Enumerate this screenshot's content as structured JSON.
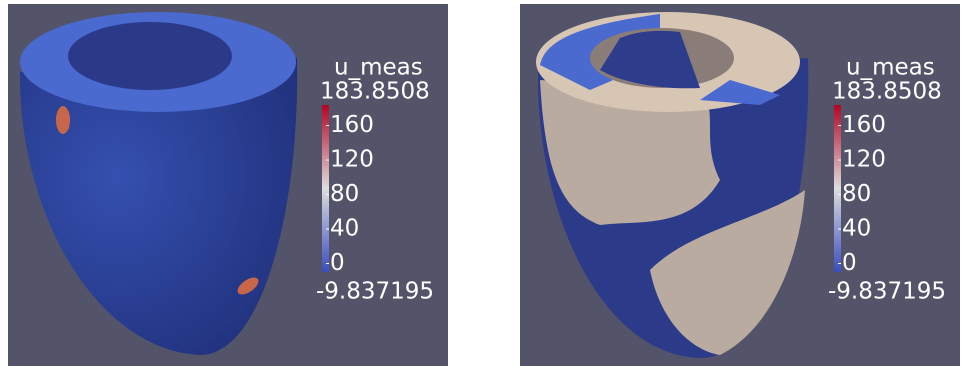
{
  "panels": [
    {
      "colorbar": {
        "title": "u_meas",
        "range": [
          -9.837195,
          183.8508
        ],
        "ticks": [
          0,
          40,
          80,
          120,
          160
        ],
        "colormap": [
          "#3b4cc0",
          "#dddddd",
          "#b40426"
        ]
      }
    },
    {
      "colorbar": {
        "title": "u_meas",
        "range": [
          -9.837195,
          183.8508
        ],
        "ticks": [
          0,
          40,
          80,
          120,
          160
        ],
        "colormap": [
          "#3b4cc0",
          "#dddddd",
          "#b40426"
        ]
      }
    }
  ]
}
